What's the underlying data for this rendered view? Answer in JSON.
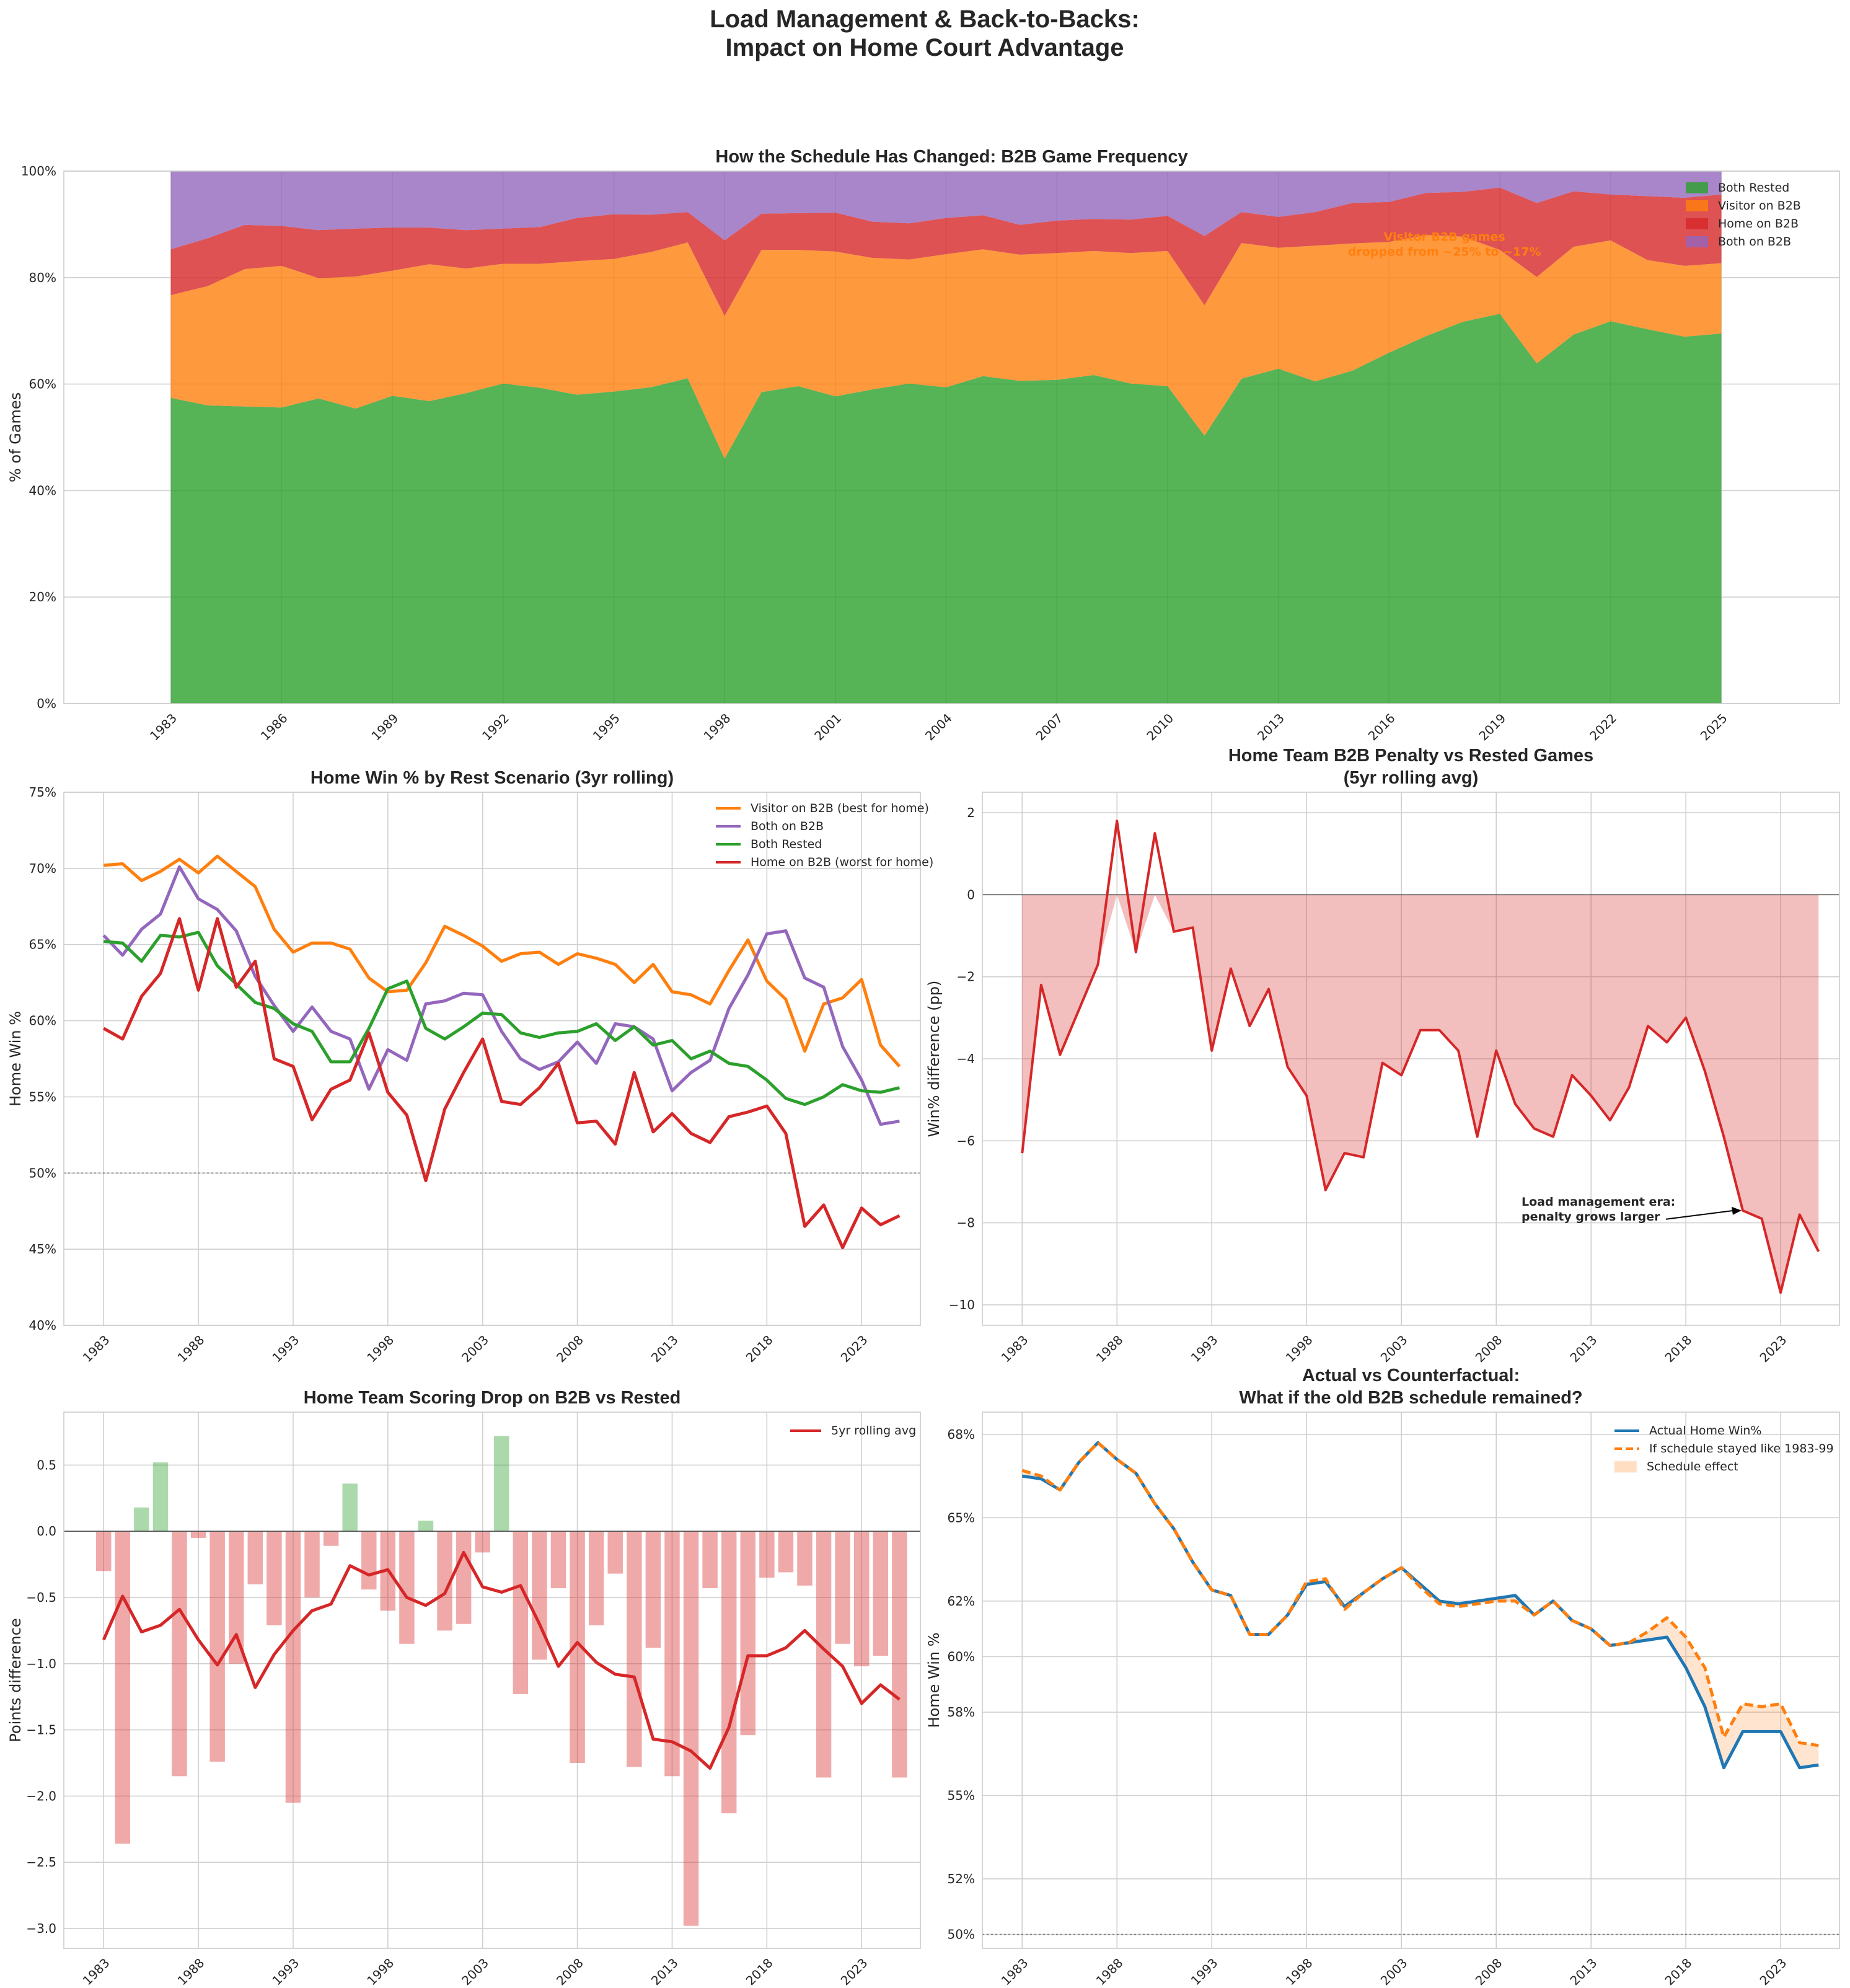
{
  "figure": {
    "title_line1": "Load Management & Back-to-Backs:",
    "title_line2": "Impact on Home Court Advantage"
  },
  "colors": {
    "green": "#2ca02c",
    "orange": "#ff7f0e",
    "red": "#d62728",
    "purple": "#9467bd",
    "blue": "#1f77b4"
  },
  "chart_data": [
    {
      "id": "schedule",
      "type": "area",
      "title": "How the Schedule Has Changed: B2B Game Frequency",
      "ylabel": "% of Games",
      "xlim": [
        1980.1,
        2028.2
      ],
      "ylim": [
        0,
        100
      ],
      "x_ticks": [
        1983,
        1986,
        1989,
        1992,
        1995,
        1998,
        2001,
        2004,
        2007,
        2010,
        2013,
        2016,
        2019,
        2022,
        2025
      ],
      "y_ticks": [
        "0%",
        "20%",
        "40%",
        "60%",
        "80%",
        "100%"
      ],
      "x": [
        1983,
        1984,
        1985,
        1986,
        1987,
        1988,
        1989,
        1990,
        1991,
        1992,
        1993,
        1994,
        1995,
        1996,
        1997,
        1998,
        1999,
        2000,
        2001,
        2002,
        2003,
        2004,
        2005,
        2006,
        2007,
        2008,
        2009,
        2010,
        2011,
        2012,
        2013,
        2014,
        2015,
        2016,
        2017,
        2018,
        2019,
        2020,
        2021,
        2022,
        2023,
        2024,
        2025
      ],
      "legend_position": "top-right",
      "series": [
        {
          "name": "Both Rested",
          "color": "#2ca02c",
          "values": [
            57.4,
            56.0,
            55.8,
            55.6,
            57.3,
            55.4,
            57.8,
            56.8,
            58.3,
            60.1,
            59.3,
            58.0,
            58.6,
            59.4,
            61.1,
            46.0,
            58.5,
            59.6,
            57.7,
            59.0,
            60.1,
            59.4,
            61.5,
            60.6,
            60.8,
            61.7,
            60.1,
            59.6,
            50.3,
            61.0,
            62.9,
            60.5,
            62.5,
            65.9,
            69.0,
            71.7,
            73.2,
            63.9,
            69.3,
            71.8,
            70.3,
            68.9,
            69.5
          ]
        },
        {
          "name": "Visitor on B2B",
          "color": "#ff7f0e",
          "values": [
            19.3,
            22.4,
            25.8,
            26.6,
            22.6,
            24.8,
            23.5,
            25.7,
            23.4,
            22.5,
            23.3,
            25.1,
            24.9,
            25.4,
            25.5,
            26.8,
            26.7,
            25.6,
            27.2,
            24.7,
            23.3,
            25.0,
            23.8,
            23.7,
            23.8,
            23.3,
            24.5,
            25.4,
            24.5,
            25.5,
            22.7,
            25.5,
            23.9,
            20.8,
            19.0,
            16.0,
            12.0,
            16.2,
            16.5,
            15.2,
            13.0,
            13.3,
            13.2
          ]
        },
        {
          "name": "Home on B2B",
          "color": "#d62728",
          "values": [
            8.6,
            9.0,
            8.3,
            7.5,
            9.0,
            9.0,
            8.1,
            6.9,
            7.2,
            6.6,
            6.9,
            8.1,
            8.4,
            7.0,
            5.7,
            14.2,
            6.8,
            6.9,
            7.3,
            6.8,
            6.8,
            6.8,
            6.4,
            5.6,
            6.1,
            6.0,
            6.3,
            6.6,
            13.0,
            5.8,
            5.8,
            6.3,
            7.6,
            7.5,
            7.9,
            8.4,
            11.7,
            13.9,
            10.4,
            8.6,
            12.0,
            12.8,
            12.9
          ]
        },
        {
          "name": "Both on B2B",
          "color": "#9467bd",
          "values": [
            14.7,
            12.6,
            10.1,
            10.3,
            11.1,
            10.8,
            10.6,
            10.6,
            11.1,
            10.8,
            10.5,
            8.8,
            8.1,
            8.2,
            7.7,
            13.0,
            8.0,
            7.9,
            7.8,
            9.5,
            9.8,
            8.8,
            8.3,
            10.1,
            9.3,
            9.0,
            9.1,
            8.4,
            12.2,
            7.7,
            8.6,
            7.7,
            6.0,
            5.8,
            4.1,
            3.9,
            3.1,
            6.0,
            3.8,
            4.4,
            4.7,
            5.0,
            4.4
          ]
        }
      ],
      "annotation": {
        "line1": "Visitor B2B games",
        "line2": "dropped from ~25% to ~17%",
        "x": 2017.5,
        "y": 85.5
      }
    },
    {
      "id": "rest-scenario",
      "type": "line",
      "title": "Home Win % by Rest Scenario (3yr rolling)",
      "ylabel": "Home Win %",
      "xlim": [
        1980.9,
        2026.1
      ],
      "ylim": [
        40,
        75
      ],
      "x_ticks": [
        1983,
        1988,
        1993,
        1998,
        2003,
        2008,
        2013,
        2018,
        2023
      ],
      "y_ticks": [
        "40%",
        "45%",
        "50%",
        "55%",
        "60%",
        "65%",
        "70%",
        "75%"
      ],
      "reference_y": 50,
      "x": [
        1983,
        1984,
        1985,
        1986,
        1987,
        1988,
        1989,
        1990,
        1991,
        1992,
        1993,
        1994,
        1995,
        1996,
        1997,
        1998,
        1999,
        2000,
        2001,
        2002,
        2003,
        2004,
        2005,
        2006,
        2007,
        2008,
        2009,
        2010,
        2011,
        2012,
        2013,
        2014,
        2015,
        2016,
        2017,
        2018,
        2019,
        2020,
        2021,
        2022,
        2023,
        2024,
        2025
      ],
      "legend_position": "top-right",
      "series": [
        {
          "name": "Visitor on B2B (best for home)",
          "color": "#ff7f0e",
          "values": [
            70.2,
            70.3,
            69.2,
            69.8,
            70.6,
            69.7,
            70.8,
            69.8,
            68.8,
            66.0,
            64.5,
            65.1,
            65.1,
            64.7,
            62.8,
            61.9,
            62.0,
            63.8,
            66.2,
            65.6,
            64.9,
            63.9,
            64.4,
            64.5,
            63.7,
            64.4,
            64.1,
            63.7,
            62.5,
            63.7,
            61.9,
            61.7,
            61.1,
            63.3,
            65.3,
            62.6,
            61.4,
            58.0,
            61.1,
            61.5,
            62.7,
            58.4,
            57.0
          ]
        },
        {
          "name": "Both on B2B",
          "color": "#9467bd",
          "values": [
            65.6,
            64.3,
            66.0,
            67.0,
            70.1,
            68.0,
            67.3,
            65.9,
            62.9,
            61.0,
            59.3,
            60.9,
            59.3,
            58.8,
            55.5,
            58.1,
            57.4,
            61.1,
            61.3,
            61.8,
            61.7,
            59.3,
            57.5,
            56.8,
            57.3,
            58.6,
            57.2,
            59.8,
            59.6,
            58.8,
            55.4,
            56.6,
            57.4,
            60.8,
            63.0,
            65.7,
            65.9,
            62.8,
            62.2,
            58.3,
            56.1,
            53.2,
            53.4
          ]
        },
        {
          "name": "Both Rested",
          "color": "#2ca02c",
          "values": [
            65.2,
            65.1,
            63.9,
            65.6,
            65.5,
            65.8,
            63.6,
            62.4,
            61.2,
            60.8,
            59.8,
            59.3,
            57.3,
            57.3,
            59.5,
            62.1,
            62.6,
            59.5,
            58.8,
            59.6,
            60.5,
            60.4,
            59.2,
            58.9,
            59.2,
            59.3,
            59.8,
            58.7,
            59.6,
            58.4,
            58.7,
            57.5,
            58.0,
            57.2,
            57.0,
            56.1,
            54.9,
            54.5,
            55.0,
            55.8,
            55.4,
            55.3,
            55.6
          ]
        },
        {
          "name": "Home on B2B (worst for home)",
          "color": "#d62728",
          "values": [
            59.5,
            58.8,
            61.6,
            63.1,
            66.7,
            62.0,
            66.7,
            62.2,
            63.9,
            57.5,
            57.0,
            53.5,
            55.5,
            56.1,
            59.2,
            55.3,
            53.8,
            49.5,
            54.2,
            56.6,
            58.8,
            54.7,
            54.5,
            55.6,
            57.2,
            53.3,
            53.4,
            51.9,
            56.6,
            52.7,
            53.9,
            52.6,
            52.0,
            53.7,
            54.0,
            54.4,
            52.6,
            46.5,
            47.9,
            45.1,
            47.7,
            46.6,
            47.2
          ]
        }
      ]
    },
    {
      "id": "b2b-penalty",
      "type": "area",
      "title_line1": "Home Team B2B Penalty vs Rested Games",
      "title_line2": "(5yr rolling avg)",
      "ylabel": "Win% difference (pp)",
      "xlim": [
        1980.9,
        2026.1
      ],
      "ylim": [
        -10.5,
        2.5
      ],
      "x_ticks": [
        1983,
        1988,
        1993,
        1998,
        2003,
        2008,
        2013,
        2018,
        2023
      ],
      "y_ticks": [
        "−10",
        "−8",
        "−6",
        "−4",
        "−2",
        "0",
        "2"
      ],
      "x": [
        1983,
        1984,
        1985,
        1986,
        1987,
        1988,
        1989,
        1990,
        1991,
        1992,
        1993,
        1994,
        1995,
        1996,
        1997,
        1998,
        1999,
        2000,
        2001,
        2002,
        2003,
        2004,
        2005,
        2006,
        2007,
        2008,
        2009,
        2010,
        2011,
        2012,
        2013,
        2014,
        2015,
        2016,
        2017,
        2018,
        2019,
        2020,
        2021,
        2022,
        2023,
        2024,
        2025
      ],
      "series": [
        {
          "name": "",
          "color": "#d62728",
          "values": [
            -6.3,
            -2.2,
            -3.9,
            -2.8,
            -1.7,
            1.8,
            -1.4,
            1.5,
            -0.9,
            -0.8,
            -3.8,
            -1.8,
            -3.2,
            -2.3,
            -4.2,
            -4.9,
            -7.2,
            -6.3,
            -6.4,
            -4.1,
            -4.4,
            -3.3,
            -3.3,
            -3.8,
            -5.9,
            -3.8,
            -5.1,
            -5.7,
            -5.9,
            -4.4,
            -4.9,
            -5.5,
            -4.7,
            -3.2,
            -3.6,
            -3.0,
            -4.3,
            -5.9,
            -7.7,
            -7.9,
            -9.7,
            -7.8,
            -8.7
          ]
        }
      ],
      "annotation": {
        "line1": "Load management era:",
        "line2": "penalty grows larger",
        "arrow_to_x": 2021,
        "arrow_to_y": -7.7
      }
    },
    {
      "id": "scoring-drop",
      "type": "bar",
      "title": "Home Team Scoring Drop on B2B vs Rested",
      "ylabel": "Points difference",
      "xlim": [
        1980.9,
        2026.1
      ],
      "ylim": [
        -3.15,
        0.9
      ],
      "x_ticks": [
        1983,
        1988,
        1993,
        1998,
        2003,
        2008,
        2013,
        2018,
        2023
      ],
      "y_ticks": [
        "−3.0",
        "−2.5",
        "−2.0",
        "−1.5",
        "−1.0",
        "−0.5",
        "0.0",
        "0.5"
      ],
      "x": [
        1983,
        1984,
        1985,
        1986,
        1987,
        1988,
        1989,
        1990,
        1991,
        1992,
        1993,
        1994,
        1995,
        1996,
        1997,
        1998,
        1999,
        2000,
        2001,
        2002,
        2003,
        2004,
        2005,
        2006,
        2007,
        2008,
        2009,
        2010,
        2011,
        2012,
        2013,
        2014,
        2015,
        2016,
        2017,
        2018,
        2019,
        2020,
        2021,
        2022,
        2023,
        2024,
        2025
      ],
      "legend_position": "top-right",
      "bar_values": [
        -0.3,
        -2.36,
        0.18,
        0.52,
        -1.85,
        -0.05,
        -1.74,
        -1.0,
        -0.4,
        -0.71,
        -2.05,
        -0.5,
        -0.11,
        0.36,
        -0.44,
        -0.6,
        -0.85,
        0.08,
        -0.75,
        -0.7,
        -0.16,
        0.72,
        -1.23,
        -0.97,
        -0.43,
        -1.75,
        -0.71,
        -0.32,
        -1.78,
        -0.88,
        -1.85,
        -2.98,
        -0.43,
        -2.13,
        -1.54,
        -0.35,
        -0.31,
        -0.41,
        -1.86,
        -0.85,
        -1.02,
        -0.94,
        -1.86
      ],
      "series": [
        {
          "name": "5yr rolling avg",
          "color": "#d62728",
          "values": [
            -0.82,
            -0.49,
            -0.76,
            -0.71,
            -0.59,
            -0.82,
            -1.01,
            -0.78,
            -1.18,
            -0.93,
            -0.75,
            -0.6,
            -0.55,
            -0.26,
            -0.33,
            -0.29,
            -0.5,
            -0.56,
            -0.47,
            -0.16,
            -0.42,
            -0.46,
            -0.41,
            -0.7,
            -1.02,
            -0.84,
            -0.99,
            -1.08,
            -1.1,
            -1.57,
            -1.59,
            -1.66,
            -1.79,
            -1.48,
            -0.94,
            -0.94,
            -0.88,
            -0.75,
            -0.89,
            -1.02,
            -1.3,
            -1.16,
            -1.27
          ]
        }
      ]
    },
    {
      "id": "counterfactual",
      "type": "line",
      "title_line1": "Actual vs Counterfactual:",
      "title_line2": "What if the old B2B schedule remained?",
      "ylabel": "Home Win %",
      "xlim": [
        1980.9,
        2026.1
      ],
      "ylim": [
        49.5,
        68.8
      ],
      "x_ticks": [
        1983,
        1988,
        1993,
        1998,
        2003,
        2008,
        2013,
        2018,
        2023
      ],
      "y_ticks": [
        "50%",
        "52%",
        "55%",
        "58%",
        "60%",
        "62%",
        "65%",
        "68%"
      ],
      "reference_y": 50,
      "x": [
        1983,
        1984,
        1985,
        1986,
        1987,
        1988,
        1989,
        1990,
        1991,
        1992,
        1993,
        1994,
        1995,
        1996,
        1997,
        1998,
        1999,
        2000,
        2001,
        2002,
        2003,
        2004,
        2005,
        2006,
        2007,
        2008,
        2009,
        2010,
        2011,
        2012,
        2013,
        2014,
        2015,
        2016,
        2017,
        2018,
        2019,
        2020,
        2021,
        2022,
        2023,
        2024,
        2025
      ],
      "legend_position": "top-right",
      "series": [
        {
          "name": "Actual Home Win%",
          "color": "#1f77b4",
          "values": [
            66.5,
            66.4,
            66.0,
            67.0,
            67.7,
            67.1,
            66.6,
            65.5,
            64.6,
            63.4,
            62.4,
            62.2,
            60.8,
            60.8,
            61.5,
            62.6,
            62.7,
            61.8,
            62.3,
            62.8,
            63.2,
            62.6,
            62.0,
            61.9,
            62.0,
            62.1,
            62.2,
            61.5,
            62.0,
            61.3,
            61.0,
            60.4,
            60.5,
            60.6,
            60.7,
            59.6,
            58.2,
            56.0,
            57.3,
            57.3,
            57.3,
            56.0,
            56.1
          ]
        },
        {
          "name": "If schedule stayed like 1983-99",
          "color": "#ff7f0e",
          "values": [
            66.7,
            66.5,
            66.0,
            67.0,
            67.7,
            67.1,
            66.6,
            65.5,
            64.6,
            63.4,
            62.4,
            62.2,
            60.8,
            60.8,
            61.5,
            62.7,
            62.8,
            61.7,
            62.3,
            62.8,
            63.2,
            62.5,
            61.9,
            61.8,
            61.9,
            62.0,
            62.0,
            61.5,
            62.0,
            61.3,
            61.0,
            60.4,
            60.5,
            60.9,
            61.4,
            60.7,
            59.6,
            57.1,
            58.3,
            58.2,
            58.3,
            56.9,
            56.8
          ]
        }
      ],
      "fill_label": "Schedule effect"
    }
  ]
}
